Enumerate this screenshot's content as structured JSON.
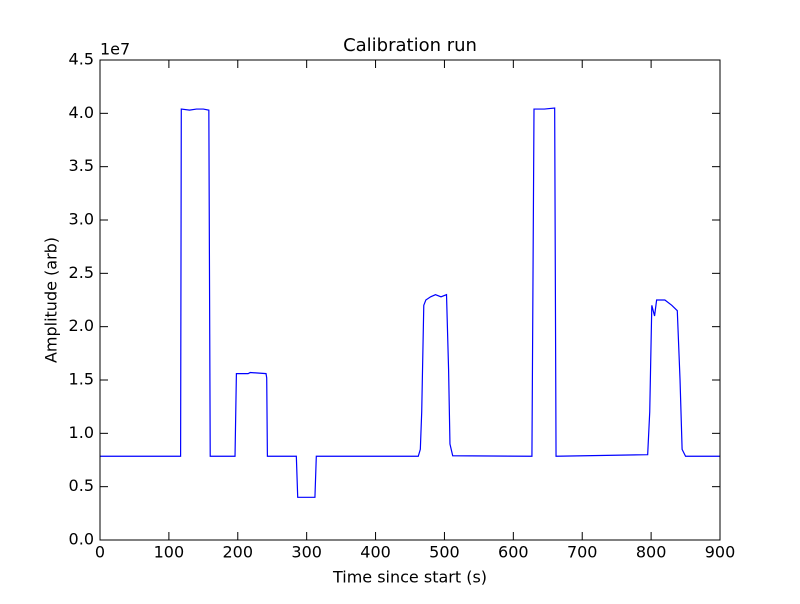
{
  "chart_data": {
    "type": "line",
    "title": "Calibration run",
    "x_label": "Time since start (s)",
    "y_label": "Amplitude (arb)",
    "y_offset_label": "1e7",
    "color": "#0000ff",
    "x": [
      0,
      117,
      118,
      130,
      140,
      150,
      158,
      160,
      196,
      198,
      215,
      218,
      241,
      242,
      243,
      285,
      287,
      312,
      314,
      462,
      465,
      467,
      470,
      473,
      480,
      487,
      495,
      503,
      506,
      508,
      512,
      627,
      630,
      645,
      660,
      662,
      795,
      798,
      801,
      805,
      808,
      820,
      830,
      838,
      842,
      845,
      850,
      900
    ],
    "values": [
      0.785,
      0.785,
      4.04,
      4.03,
      4.04,
      4.04,
      4.03,
      0.785,
      0.785,
      1.56,
      1.56,
      1.57,
      1.56,
      1.52,
      0.785,
      0.785,
      0.4,
      0.4,
      0.785,
      0.785,
      0.85,
      1.2,
      2.2,
      2.25,
      2.28,
      2.3,
      2.28,
      2.3,
      1.6,
      0.9,
      0.79,
      0.785,
      4.04,
      4.04,
      4.05,
      0.785,
      0.8,
      1.2,
      2.2,
      2.1,
      2.25,
      2.25,
      2.2,
      2.15,
      1.5,
      0.85,
      0.785,
      0.785
    ],
    "xlim": [
      0,
      900
    ],
    "xticks": [
      0,
      100,
      200,
      300,
      400,
      500,
      600,
      700,
      800,
      900
    ],
    "ylim": [
      0,
      4.5
    ],
    "yticks": [
      {
        "value": 0,
        "label": "0.0"
      },
      {
        "value": 0.5,
        "label": "0.5"
      },
      {
        "value": 1,
        "label": "1.0"
      },
      {
        "value": 1.5,
        "label": "1.5"
      },
      {
        "value": 2,
        "label": "2.0"
      },
      {
        "value": 2.5,
        "label": "2.5"
      },
      {
        "value": 3,
        "label": "3.0"
      },
      {
        "value": 3.5,
        "label": "3.5"
      },
      {
        "value": 4,
        "label": "4.0"
      },
      {
        "value": 4.5,
        "label": "4.5"
      }
    ]
  }
}
